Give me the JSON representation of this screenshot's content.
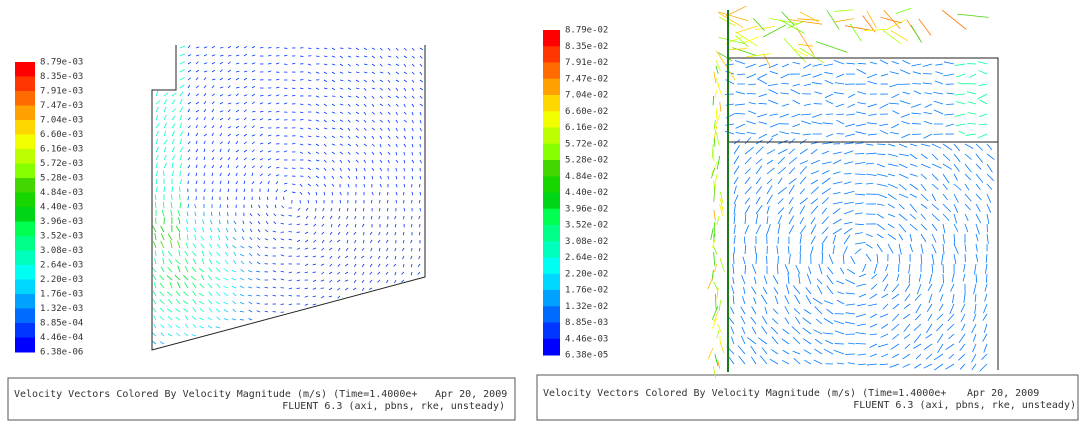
{
  "panels": [
    {
      "colorbar_labels": [
        "8.79e-03",
        "8.35e-03",
        "7.91e-03",
        "7.47e-03",
        "7.04e-03",
        "6.60e-03",
        "6.16e-03",
        "5.72e-03",
        "5.28e-03",
        "4.84e-03",
        "4.40e-03",
        "3.96e-03",
        "3.52e-03",
        "3.08e-03",
        "2.64e-03",
        "2.20e-03",
        "1.76e-03",
        "1.32e-03",
        "8.85e-04",
        "4.46e-04",
        "6.38e-06"
      ],
      "caption": {
        "title": "Velocity Vectors Colored By Velocity Magnitude (m/s)  (Time=1.4000e+",
        "date": "Apr 20, 2009",
        "solver": "FLUENT 6.3 (axi, pbns, rke, unsteady)"
      }
    },
    {
      "colorbar_labels": [
        "8.79e-02",
        "8.35e-02",
        "7.91e-02",
        "7.47e-02",
        "7.04e-02",
        "6.60e-02",
        "6.16e-02",
        "5.72e-02",
        "5.28e-02",
        "4.84e-02",
        "4.40e-02",
        "3.96e-02",
        "3.52e-02",
        "3.08e-02",
        "2.64e-02",
        "2.20e-02",
        "1.76e-02",
        "1.32e-02",
        "8.85e-03",
        "4.46e-03",
        "6.38e-05"
      ],
      "caption": {
        "title": "Velocity Vectors Colored By Velocity Magnitude (m/s)  (Time=1.4000e+",
        "date": "Apr 20, 2009",
        "solver": "FLUENT 6.3 (axi, pbns, rke, unsteady)"
      }
    }
  ]
}
